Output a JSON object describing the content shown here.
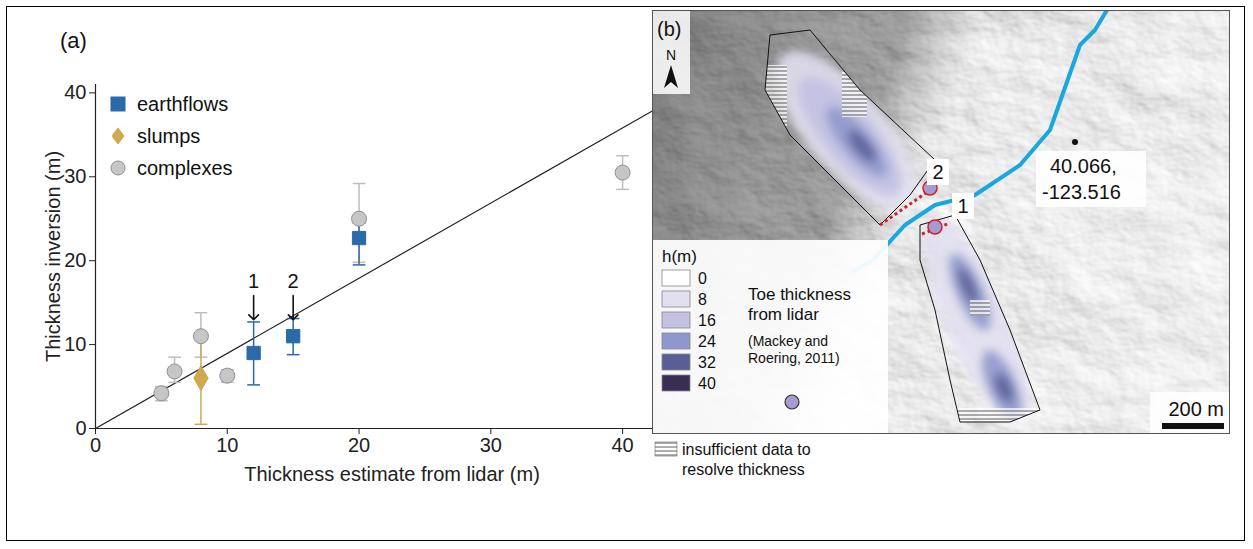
{
  "chart_data": {
    "type": "scatter",
    "panel_label": "(a)",
    "x_label": "Thickness estimate from lidar (m)",
    "y_label": "Thickness inversion (m)",
    "xlim": [
      0,
      45
    ],
    "ylim": [
      0,
      41
    ],
    "xticks": [
      0,
      10,
      20,
      30,
      40
    ],
    "yticks": [
      0,
      10,
      20,
      30,
      40
    ],
    "legend": "top-left",
    "series": [
      {
        "name": "earthflows",
        "color": "#2a6aa8",
        "marker": "square",
        "x": [
          12,
          15,
          20
        ],
        "values": [
          9,
          11,
          22.7
        ],
        "y_low": [
          5.2,
          8.8,
          19.5
        ],
        "y_high": [
          12.7,
          13.1,
          24.5
        ]
      },
      {
        "name": "slumps",
        "color": "#d2a84e",
        "marker": "diamond",
        "x": [
          8
        ],
        "values": [
          6
        ],
        "y_low": [
          0.5
        ],
        "y_high": [
          10.7
        ]
      },
      {
        "name": "complexes",
        "color": "#c6c6c6",
        "marker": "circle",
        "x": [
          5,
          6,
          8,
          10,
          20,
          40
        ],
        "values": [
          4.2,
          6.8,
          11,
          6.3,
          25,
          30.5
        ],
        "y_low": [
          3.3,
          5.5,
          8.5,
          5.5,
          19.8,
          28.5
        ],
        "y_high": [
          5,
          8.5,
          13.8,
          7,
          29.2,
          32.5
        ]
      }
    ],
    "reference_line": {
      "x": [
        0,
        45
      ],
      "values": [
        0,
        40.3
      ],
      "color": "#222222"
    },
    "annotations": [
      {
        "text": "1",
        "x": 12,
        "y": 17.5
      },
      {
        "text": "2",
        "x": 15,
        "y": 17.5
      }
    ]
  },
  "map": {
    "panel_label": "(b)",
    "north": "N",
    "coordinate_label": [
      "40.066,",
      "-123.516"
    ],
    "sites": [
      "1",
      "2"
    ],
    "legend_title": "h(m)",
    "legend_values": [
      0,
      8,
      16,
      24,
      32,
      40
    ],
    "legend_colors": [
      "#ffffff",
      "#e2e0f0",
      "#c3c0e2",
      "#8e98cc",
      "#5a5e96",
      "#3a2d55"
    ],
    "toe_label": [
      "Toe thickness",
      "from lidar"
    ],
    "toe_citation": [
      "(Mackey and",
      "Roering, 2011)"
    ],
    "scale_bar": "200 m",
    "hatch_label": [
      "insufficient data to",
      "resolve thickness"
    ],
    "river_color": "#1aa7e0",
    "toe_color": "#a79ad0",
    "line_color": "#d0202a"
  }
}
